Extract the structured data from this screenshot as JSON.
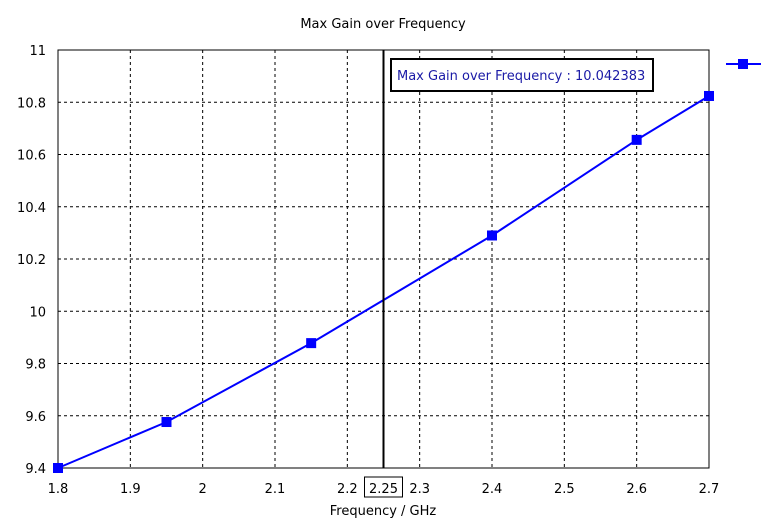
{
  "chart_data": {
    "type": "line",
    "title": "Max Gain over Frequency",
    "xlabel": "Frequency / GHz",
    "ylabel": "",
    "xlim": [
      1.8,
      2.7
    ],
    "ylim": [
      9.4,
      11
    ],
    "grid": true,
    "x_ticks": [
      "1.8",
      "1.9",
      "2",
      "2.1",
      "2.2",
      "2.3",
      "2.4",
      "2.5",
      "2.6",
      "2.7"
    ],
    "x_tick_values": [
      1.8,
      1.9,
      2.0,
      2.1,
      2.2,
      2.3,
      2.4,
      2.5,
      2.6,
      2.7
    ],
    "y_ticks": [
      "9.4",
      "9.6",
      "9.8",
      "10",
      "10.2",
      "10.4",
      "10.6",
      "10.8",
      "11"
    ],
    "y_tick_values": [
      9.4,
      9.6,
      9.8,
      10.0,
      10.2,
      10.4,
      10.6,
      10.8,
      11.0
    ],
    "series": [
      {
        "name": "",
        "color": "#0000ff",
        "x": [
          1.8,
          1.95,
          2.15,
          2.4,
          2.6,
          2.7
        ],
        "values": [
          9.4,
          9.576,
          9.878,
          10.29,
          10.656,
          10.824
        ]
      }
    ],
    "cursor": {
      "x": 2.25,
      "x_label": "2.25",
      "readout": "Max Gain over Frequency : 10.042383"
    },
    "legend_placement": "top-right"
  }
}
